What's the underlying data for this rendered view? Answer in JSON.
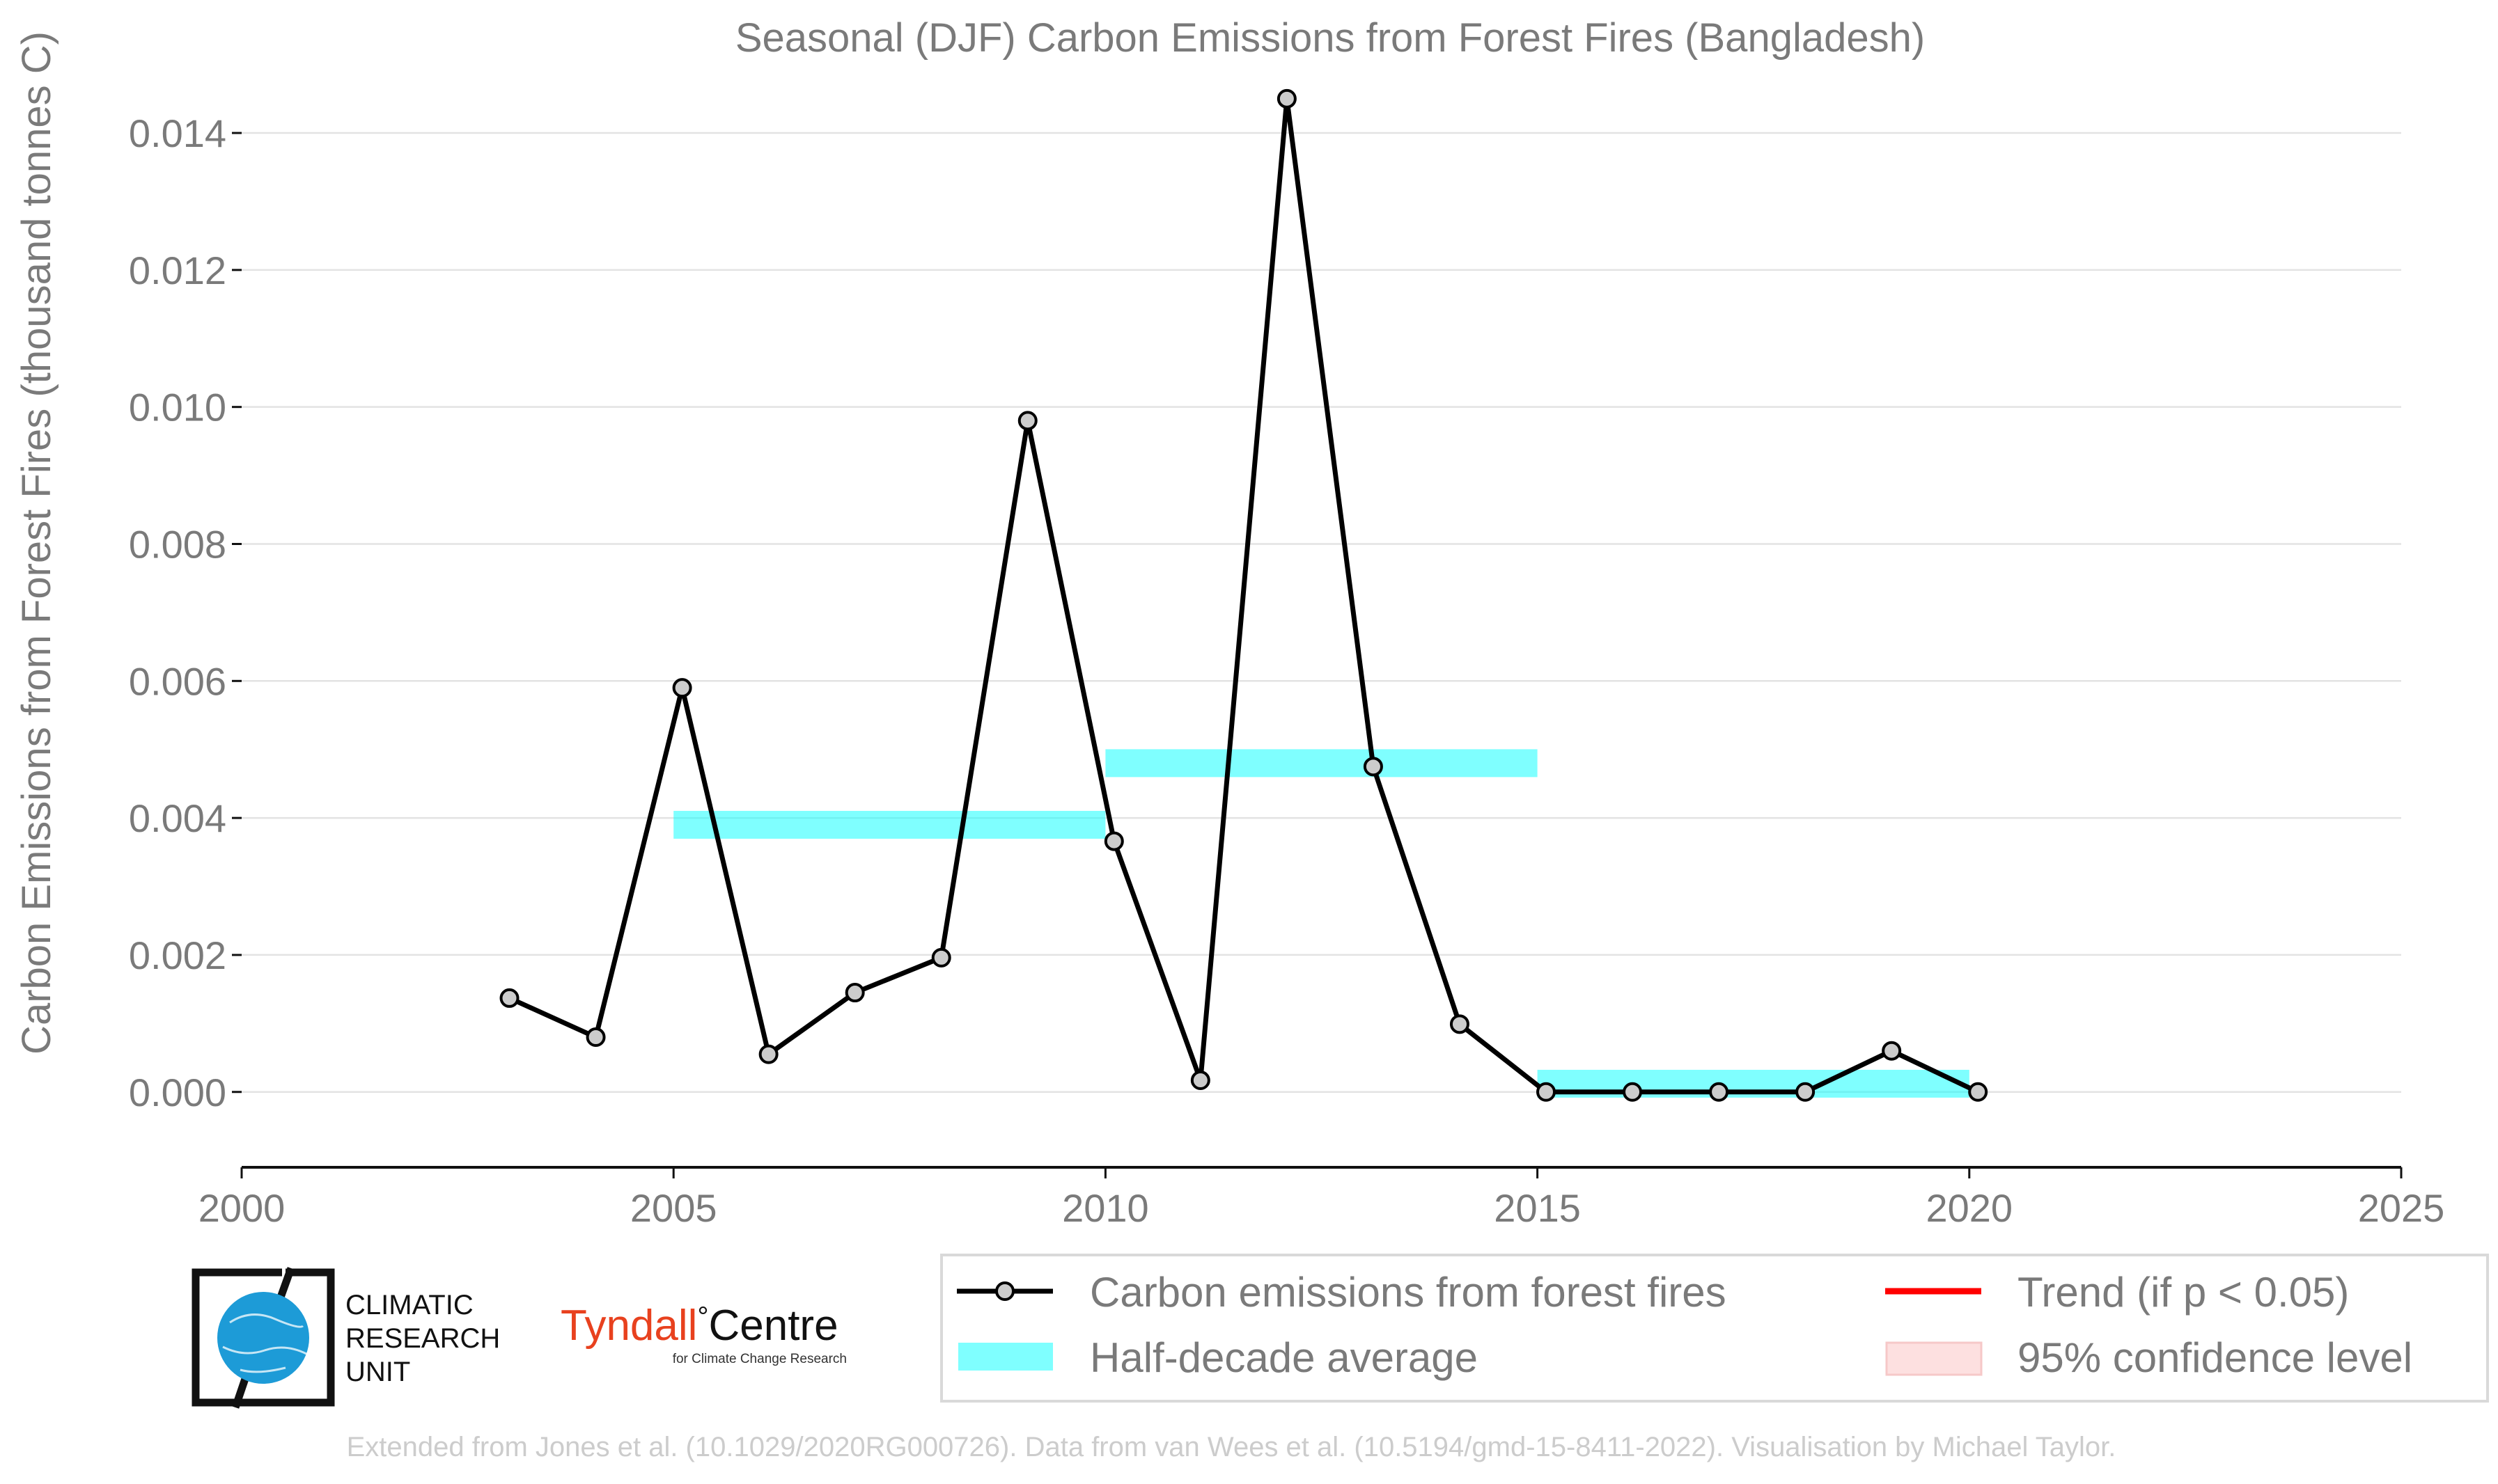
{
  "chart_data": {
    "type": "line",
    "title": "Seasonal (DJF) Carbon Emissions from Forest Fires (Bangladesh)",
    "xlabel": "",
    "ylabel": "Carbon Emissions from Forest Fires (thousand tonnes C)",
    "xlim": [
      2000,
      2025
    ],
    "ylim": [
      -0.0011,
      0.0146
    ],
    "x_ticks": [
      "2000",
      "2005",
      "2010",
      "2015",
      "2020",
      "2025"
    ],
    "y_ticks": [
      "0.000",
      "0.002",
      "0.004",
      "0.006",
      "0.008",
      "0.010",
      "0.012",
      "0.014"
    ],
    "grid": true,
    "series": [
      {
        "name": "Carbon emissions from forest fires",
        "color": "#000000",
        "marker_fill": "#cccccc",
        "x": [
          2003,
          2004,
          2005,
          2006,
          2007,
          2008,
          2009,
          2010,
          2011,
          2012,
          2013,
          2014,
          2015,
          2016,
          2017,
          2018,
          2019,
          2020
        ],
        "y": [
          0.00137,
          0.0008,
          0.0059,
          0.00055,
          0.00145,
          0.00196,
          0.0098,
          0.00366,
          0.00017,
          0.0145,
          0.00475,
          0.00099,
          0.0,
          0.0,
          0.0,
          0.0,
          0.0006,
          0.0
        ]
      }
    ],
    "half_decade_average": {
      "name": "Half-decade average",
      "color": "#00ffff",
      "bands": [
        {
          "x_start": 2005,
          "x_end": 2010,
          "y": 0.0039
        },
        {
          "x_start": 2010,
          "x_end": 2015,
          "y": 0.0048
        },
        {
          "x_start": 2015,
          "x_end": 2020,
          "y": 0.00012
        }
      ]
    },
    "legend": {
      "position": "bottom-right",
      "entries": [
        {
          "label": "Carbon emissions from forest fires",
          "kind": "line-marker",
          "color": "#000000"
        },
        {
          "label": "Trend (if p < 0.05)",
          "kind": "line",
          "color": "#ff0000"
        },
        {
          "label": "Half-decade average",
          "kind": "patch",
          "color": "#00ffff"
        },
        {
          "label": "95% confidence level",
          "kind": "patch",
          "color": "#f8d0d0"
        }
      ]
    }
  },
  "logos": {
    "cru": [
      "CLIMATIC",
      "RESEARCH",
      "UNIT"
    ],
    "tyndall_name": "Tyndall",
    "tyndall_degree": "°",
    "tyndall_centre": "Centre",
    "tyndall_subtitle": "for Climate Change Research"
  },
  "credit": "Extended from Jones et al. (10.1029/2020RG000726). Data from van Wees et al. (10.5194/gmd-15-8411-2022). Visualisation by Michael Taylor."
}
